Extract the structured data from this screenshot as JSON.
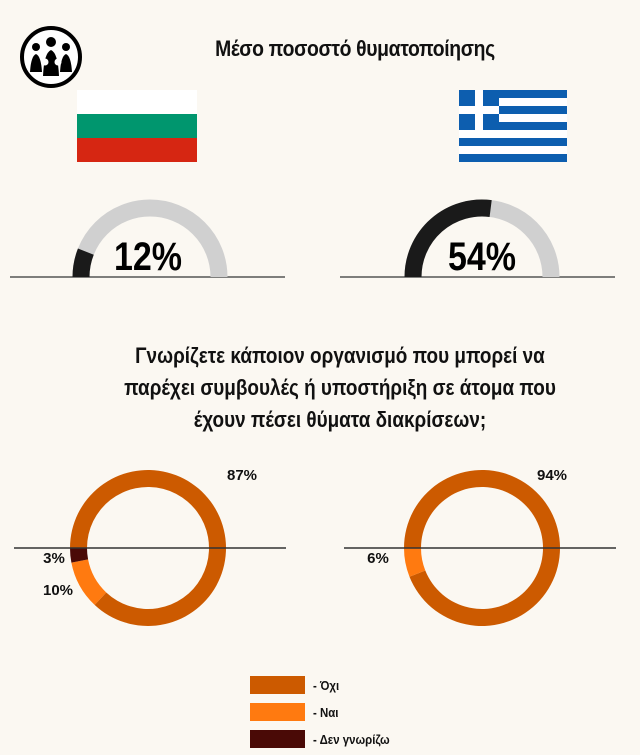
{
  "title": "Μέσο ποσοστό θυματοποίησης",
  "question": "Γνωρίζετε κάποιον οργανισμό που μπορεί να παρέχει συμβουλές ή υποστήριξη σε άτομα που έχουν πέσει θύματα διακρίσεων;",
  "icons": {
    "logo": "people-group-logo-icon",
    "flag_left": "bulgaria-flag-icon",
    "flag_right": "greece-flag-icon"
  },
  "colors": {
    "gauge_fill": "#1a1a1a",
    "gauge_track": "#d0d0d0",
    "no": "#cc5a00",
    "yes": "#ff7a10",
    "dont_know": "#4a0a06"
  },
  "legend": [
    {
      "label": "- Όχι",
      "color": "#cc5a00"
    },
    {
      "label": "- Ναι",
      "color": "#ff7a10"
    },
    {
      "label": "- Δεν γνωρίζω",
      "color": "#4a0a06"
    }
  ],
  "chart_data": [
    {
      "type": "gauge",
      "value": 12,
      "max": 100,
      "label": "12%"
    },
    {
      "type": "gauge",
      "value": 54,
      "max": 100,
      "label": "54%"
    },
    {
      "type": "pie",
      "categories": [
        "Όχι",
        "Ναι",
        "Δεν γνωρίζω"
      ],
      "values": [
        87,
        10,
        3
      ],
      "labels": [
        "87%",
        "10%",
        "3%"
      ]
    },
    {
      "type": "pie",
      "categories": [
        "Όχι",
        "Ναι",
        "Δεν γνωρίζω"
      ],
      "values": [
        94,
        6,
        0
      ],
      "labels": [
        "94%",
        "6%",
        ""
      ]
    }
  ]
}
